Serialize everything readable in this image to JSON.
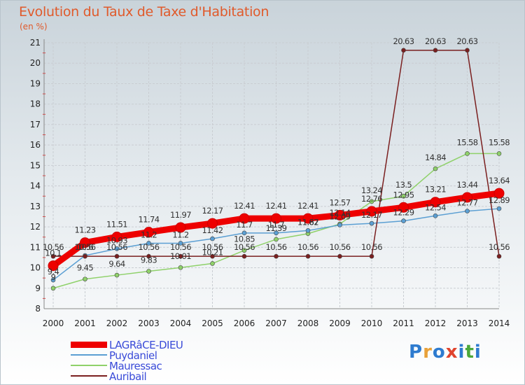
{
  "title": "Evolution du Taux de Taxe d'Habitation",
  "unit": "(en %)",
  "logo": {
    "text": "Proxiti",
    "colors": [
      "#2e7bcf",
      "#e8a13a",
      "#2e7bcf",
      "#e0442e",
      "#2e7bcf",
      "#4ca83a",
      "#2e7bcf"
    ]
  },
  "chart_data": {
    "type": "line",
    "x": [
      "2000",
      "2001",
      "2002",
      "2003",
      "2004",
      "2005",
      "2006",
      "2007",
      "2008",
      "2009",
      "2010",
      "2011",
      "2012",
      "2013",
      "2014"
    ],
    "ylim": [
      8,
      21
    ],
    "yticks": [
      "8",
      "9",
      "10",
      "11",
      "12",
      "13",
      "14",
      "15",
      "16",
      "17",
      "18",
      "19",
      "20",
      "21"
    ],
    "grid": true,
    "series": [
      {
        "name": "LAGRâCE-DIEU",
        "color": "#ee0000",
        "values": [
          10.1,
          11.23,
          11.51,
          11.74,
          11.97,
          12.17,
          12.41,
          12.41,
          12.41,
          12.57,
          12.76,
          12.95,
          13.21,
          13.44,
          13.64
        ],
        "labels": [
          "10.1",
          "11.23",
          "11.51",
          "11.74",
          "11.97",
          "12.17",
          "12.41",
          "12.41",
          "12.41",
          "12.57",
          "12.76",
          "12.95",
          "13.21",
          "13.44",
          "13.64"
        ]
      },
      {
        "name": "Puydaniel",
        "color": "#5b9fd3",
        "values": [
          9.4,
          10.6,
          10.93,
          11.2,
          11.2,
          11.42,
          11.7,
          11.7,
          11.82,
          12.09,
          12.17,
          12.29,
          12.54,
          12.77,
          12.89
        ],
        "labels": [
          "9.4",
          "10.6",
          "10.93",
          "11.2",
          "11.2",
          "11.42",
          "11.7",
          "11.7",
          "11.82",
          "12.09",
          "12.17",
          "12.29",
          "12.54",
          "12.77",
          "12.89"
        ]
      },
      {
        "name": "Mauressac",
        "color": "#8fd16a",
        "values": [
          9.0,
          9.45,
          9.64,
          9.83,
          10.01,
          10.21,
          10.85,
          11.39,
          11.67,
          12.14,
          13.24,
          13.5,
          14.84,
          15.58,
          15.58
        ],
        "labels": [
          "9",
          "9.45",
          "9.64",
          "9.83",
          "10.01",
          "10.21",
          "10.85",
          "11.39",
          "11.67",
          "12.14",
          "13.24",
          "13.5",
          "14.84",
          "15.58",
          "15.58"
        ]
      },
      {
        "name": "Auribail",
        "color": "#7a1f1f",
        "values": [
          10.56,
          10.56,
          10.56,
          10.56,
          10.56,
          10.56,
          10.56,
          10.56,
          10.56,
          10.56,
          10.56,
          20.63,
          20.63,
          20.63,
          10.56
        ],
        "labels": [
          "10.56",
          "10.56",
          "10.56",
          "10.56",
          "10.56",
          "10.56",
          "10.56",
          "10.56",
          "10.56",
          "10.56",
          "10.56",
          "20.63",
          "20.63",
          "20.63",
          "10.56"
        ]
      }
    ],
    "legend": "bottom-left"
  }
}
